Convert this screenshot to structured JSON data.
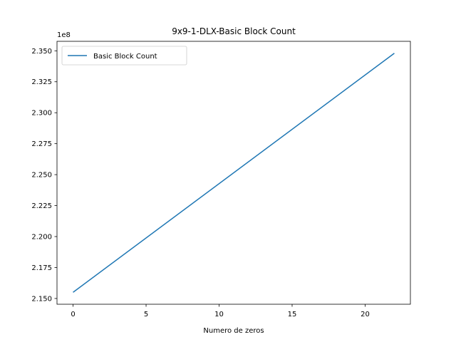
{
  "chart_data": {
    "type": "line",
    "title": "9x9-1-DLX-Basic Block Count",
    "xlabel": "Numero de zeros",
    "ylabel": "",
    "offset_text": "1e8",
    "x": [
      0,
      22
    ],
    "series": [
      {
        "name": "Basic Block Count",
        "values": [
          215500000,
          234800000
        ],
        "color": "#1f77b4"
      }
    ],
    "xlim": [
      -1.1,
      23.1
    ],
    "ylim": [
      214535000,
      235765000
    ],
    "xticks": [
      0,
      5,
      10,
      15,
      20
    ],
    "xtick_labels": [
      "0",
      "5",
      "10",
      "15",
      "20"
    ],
    "yticks": [
      215000000,
      217500000,
      220000000,
      222500000,
      225000000,
      227500000,
      230000000,
      232500000,
      235000000
    ],
    "ytick_labels": [
      "2.150",
      "2.175",
      "2.200",
      "2.225",
      "2.250",
      "2.275",
      "2.300",
      "2.325",
      "2.350"
    ],
    "grid": false,
    "legend": "upper-left"
  }
}
